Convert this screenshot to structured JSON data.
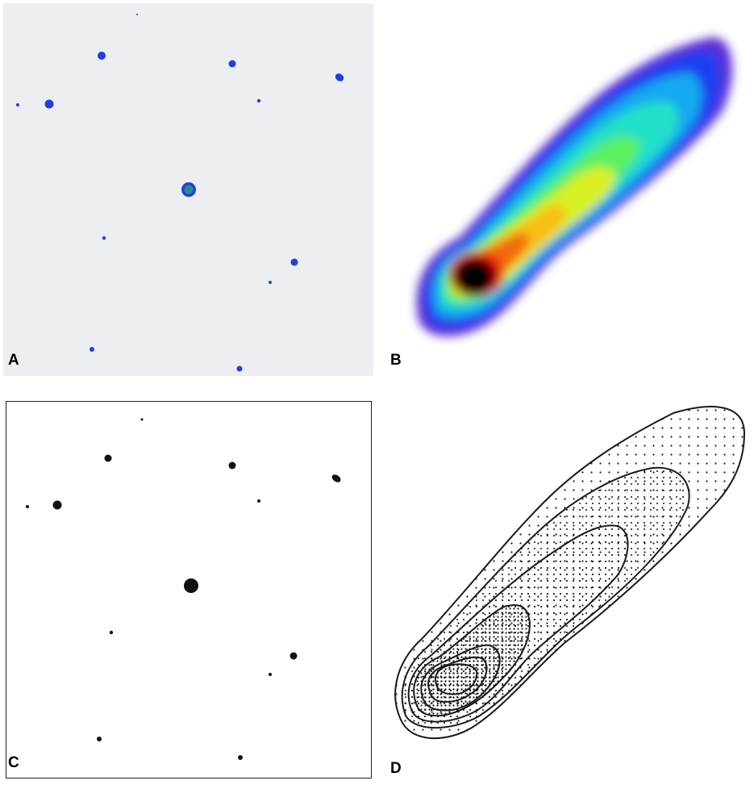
{
  "panels": [
    {
      "label": "A"
    },
    {
      "label": "B"
    },
    {
      "label": "C"
    },
    {
      "label": "D"
    }
  ],
  "colors": {
    "panel_a_background": "#eceef1",
    "spot_blue": "#1f3fe0",
    "spot_center_green": "#2e8a8a",
    "spot_black": "#111111",
    "contour_line": "#1a1a1a",
    "heatmap_scale": [
      "#5a2fd6",
      "#1f3ff0",
      "#18a8f0",
      "#22e0c8",
      "#5cf060",
      "#d8f020",
      "#f8c018",
      "#f06a10",
      "#e01010",
      "#000000"
    ]
  }
}
